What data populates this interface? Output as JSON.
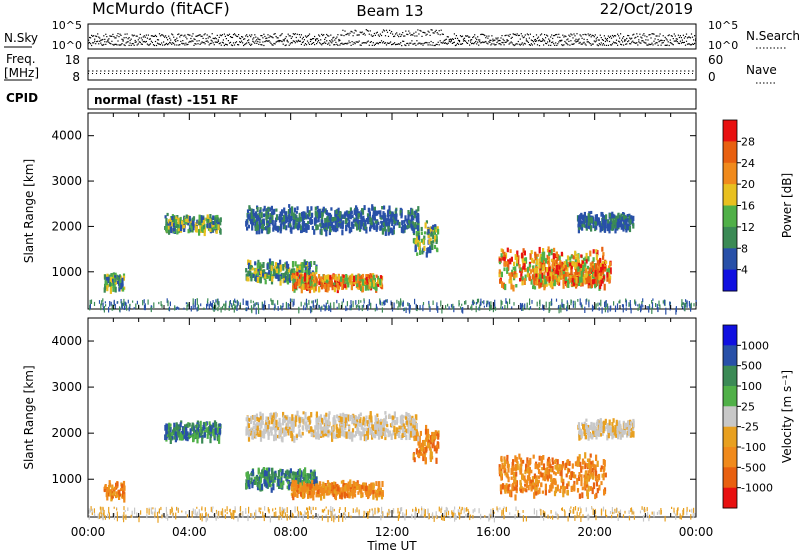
{
  "header": {
    "station": "McMurdo (fitACF)",
    "beam": "Beam 13",
    "date": "22/Oct/2019"
  },
  "noise_panel": {
    "left_label": "N.Sky",
    "right_label": "N.Search",
    "left_ticks": [
      "10^5",
      "10^0"
    ],
    "right_ticks": [
      "10^5",
      "10^0"
    ]
  },
  "freq_panel": {
    "left_label_1": "Freq.",
    "left_label_2": "[MHz]",
    "right_label": "Nave",
    "left_ticks": [
      "18",
      "8"
    ],
    "right_ticks": [
      "60",
      "0"
    ]
  },
  "cpid_panel": {
    "label": "CPID",
    "text": "normal (fast) -151 RF"
  },
  "xaxis": {
    "label": "Time UT",
    "ticks": [
      "00:00",
      "04:00",
      "08:00",
      "12:00",
      "16:00",
      "20:00",
      "00:00"
    ]
  },
  "chart_data": [
    {
      "type": "heatmap",
      "name": "power",
      "ylabel": "Slant Range [km]",
      "ylim": [
        180,
        4500
      ],
      "yticks": [
        "1000",
        "2000",
        "3000",
        "4000"
      ],
      "colorbar_label": "Power [dB]",
      "colorbar_ticks": [
        "4",
        "8",
        "12",
        "16",
        "20",
        "24",
        "28"
      ],
      "colorbar_colors": [
        "#1010e0",
        "#2850a8",
        "#3b8a55",
        "#50b048",
        "#e8c020",
        "#f08a1c",
        "#e86010",
        "#e81010"
      ],
      "clim": [
        0,
        32
      ],
      "scatter_regions": [
        {
          "t": [
            0.6,
            1.4
          ],
          "r": [
            620,
            1000
          ],
          "level": "medium"
        },
        {
          "t": [
            3.0,
            5.2
          ],
          "r": [
            1900,
            2300
          ],
          "level": "medium"
        },
        {
          "t": [
            6.2,
            9.0
          ],
          "r": [
            800,
            1300
          ],
          "level": "medium"
        },
        {
          "t": [
            8.0,
            11.6
          ],
          "r": [
            650,
            1000
          ],
          "level": "high"
        },
        {
          "t": [
            12.8,
            13.8
          ],
          "r": [
            1400,
            2200
          ],
          "level": "medium"
        },
        {
          "t": [
            16.2,
            20.4
          ],
          "r": [
            650,
            1600
          ],
          "level": "high"
        },
        {
          "t": [
            17.6,
            20.6
          ],
          "r": [
            700,
            1300
          ],
          "level": "high"
        },
        {
          "t": [
            19.3,
            21.5
          ],
          "r": [
            1950,
            2350
          ],
          "level": "low"
        },
        {
          "t": [
            6.2,
            13.0
          ],
          "r": [
            1900,
            2500
          ],
          "level": "low"
        }
      ]
    },
    {
      "type": "heatmap",
      "name": "velocity",
      "ylabel": "Slant Range [km]",
      "ylim": [
        180,
        4500
      ],
      "yticks": [
        "1000",
        "2000",
        "3000",
        "4000"
      ],
      "colorbar_label": "Velocity [m s⁻¹]",
      "colorbar_ticks": [
        "1000",
        "500",
        "100",
        "25",
        "-25",
        "-100",
        "-500",
        "-1000"
      ],
      "colorbar_colors": [
        "#1010e0",
        "#2850a8",
        "#3b8a55",
        "#50b048",
        "#c8c8c8",
        "#e8a020",
        "#f08a1c",
        "#e86010",
        "#e81010"
      ],
      "scatter_regions": [
        {
          "t": [
            0.6,
            1.4
          ],
          "r": [
            620,
            1000
          ],
          "level": "neg"
        },
        {
          "t": [
            3.0,
            5.2
          ],
          "r": [
            1900,
            2300
          ],
          "level": "pos"
        },
        {
          "t": [
            6.2,
            9.0
          ],
          "r": [
            800,
            1300
          ],
          "level": "pos"
        },
        {
          "t": [
            8.0,
            11.6
          ],
          "r": [
            650,
            1000
          ],
          "level": "neg"
        },
        {
          "t": [
            12.8,
            13.8
          ],
          "r": [
            1400,
            2200
          ],
          "level": "neg"
        },
        {
          "t": [
            16.2,
            20.4
          ],
          "r": [
            650,
            1600
          ],
          "level": "neg"
        },
        {
          "t": [
            19.3,
            21.5
          ],
          "r": [
            1950,
            2350
          ],
          "level": "zero"
        },
        {
          "t": [
            6.2,
            13.0
          ],
          "r": [
            1900,
            2500
          ],
          "level": "zero"
        }
      ]
    }
  ]
}
